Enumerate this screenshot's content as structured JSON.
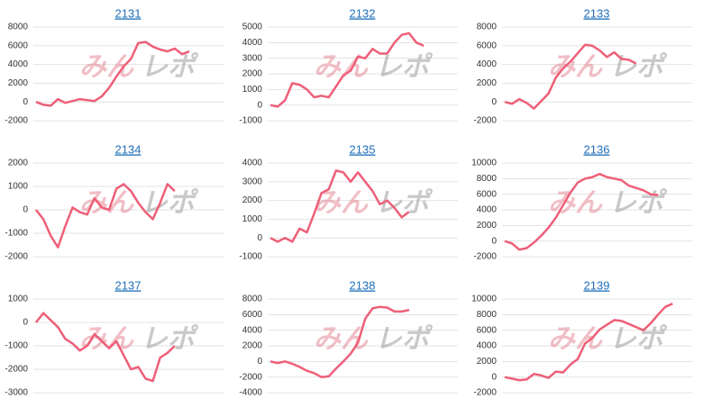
{
  "watermark": [
    "みん",
    "レポ"
  ],
  "chart_data": [
    {
      "type": "line",
      "title": "2131",
      "color": "#ee5f78",
      "ylim": [
        -2000,
        8000
      ],
      "yticks": [
        -2000,
        0,
        2000,
        4000,
        6000,
        8000
      ],
      "values": [
        0,
        -300,
        -400,
        300,
        -100,
        100,
        300,
        200,
        100,
        600,
        1500,
        2700,
        3800,
        4600,
        6300,
        6400,
        5900,
        5600,
        5400,
        5700,
        5100,
        5400
      ]
    },
    {
      "type": "line",
      "title": "2132",
      "color": "#ee5f78",
      "ylim": [
        -1000,
        5000
      ],
      "yticks": [
        -1000,
        0,
        1000,
        2000,
        3000,
        4000,
        5000
      ],
      "values": [
        0,
        -100,
        300,
        1400,
        1300,
        1000,
        500,
        600,
        500,
        1200,
        1900,
        2200,
        3100,
        3000,
        3600,
        3300,
        3300,
        4000,
        4500,
        4600,
        4000,
        3800
      ]
    },
    {
      "type": "line",
      "title": "2133",
      "color": "#ee5f78",
      "ylim": [
        -2000,
        8000
      ],
      "yticks": [
        -2000,
        0,
        2000,
        4000,
        6000,
        8000
      ],
      "values": [
        0,
        -200,
        300,
        -100,
        -700,
        100,
        900,
        2600,
        3600,
        4300,
        5200,
        6100,
        6000,
        5500,
        4800,
        5300,
        4600,
        4500,
        4100
      ]
    },
    {
      "type": "line",
      "title": "2134",
      "color": "#ee5f78",
      "ylim": [
        -2000,
        2000
      ],
      "yticks": [
        -2000,
        -1000,
        0,
        1000,
        2000
      ],
      "values": [
        0,
        -400,
        -1100,
        -1600,
        -700,
        100,
        -100,
        -200,
        500,
        100,
        0,
        900,
        1100,
        800,
        300,
        -100,
        -400,
        300,
        1100,
        800
      ]
    },
    {
      "type": "line",
      "title": "2135",
      "color": "#ee5f78",
      "ylim": [
        -1000,
        4000
      ],
      "yticks": [
        -1000,
        0,
        1000,
        2000,
        3000,
        4000
      ],
      "values": [
        0,
        -200,
        0,
        -200,
        500,
        300,
        1300,
        2400,
        2600,
        3600,
        3500,
        3000,
        3500,
        3000,
        2500,
        1800,
        2000,
        1600,
        1100,
        1400
      ]
    },
    {
      "type": "line",
      "title": "2136",
      "color": "#ee5f78",
      "ylim": [
        -2000,
        10000
      ],
      "yticks": [
        -2000,
        0,
        2000,
        4000,
        6000,
        8000,
        10000
      ],
      "values": [
        0,
        -300,
        -1100,
        -900,
        -200,
        700,
        1700,
        3000,
        4600,
        6200,
        7500,
        8000,
        8200,
        8600,
        8200,
        8000,
        7800,
        7100,
        6800,
        6500,
        6000,
        5900
      ]
    },
    {
      "type": "line",
      "title": "2137",
      "color": "#ee5f78",
      "ylim": [
        -3000,
        1000
      ],
      "yticks": [
        -3000,
        -2000,
        -1000,
        0,
        1000
      ],
      "values": [
        0,
        400,
        100,
        -200,
        -700,
        -900,
        -1200,
        -1000,
        -500,
        -800,
        -1100,
        -800,
        -1400,
        -2000,
        -1900,
        -2400,
        -2500,
        -1500,
        -1300,
        -1000
      ]
    },
    {
      "type": "line",
      "title": "2138",
      "color": "#ee5f78",
      "ylim": [
        -4000,
        8000
      ],
      "yticks": [
        -4000,
        -2000,
        0,
        2000,
        4000,
        6000,
        8000
      ],
      "values": [
        0,
        -200,
        0,
        -300,
        -700,
        -1200,
        -1500,
        -2000,
        -1900,
        -900,
        0,
        1000,
        2400,
        5500,
        6800,
        7000,
        6900,
        6400,
        6400,
        6600
      ]
    },
    {
      "type": "line",
      "title": "2139",
      "color": "#ee5f78",
      "ylim": [
        -2000,
        10000
      ],
      "yticks": [
        -2000,
        0,
        2000,
        4000,
        6000,
        8000,
        10000
      ],
      "values": [
        0,
        -200,
        -400,
        -300,
        400,
        200,
        -100,
        700,
        600,
        1600,
        2300,
        4300,
        5000,
        6100,
        6700,
        7300,
        7200,
        6800,
        6400,
        6000,
        6900,
        8000,
        9000,
        9400
      ]
    }
  ]
}
